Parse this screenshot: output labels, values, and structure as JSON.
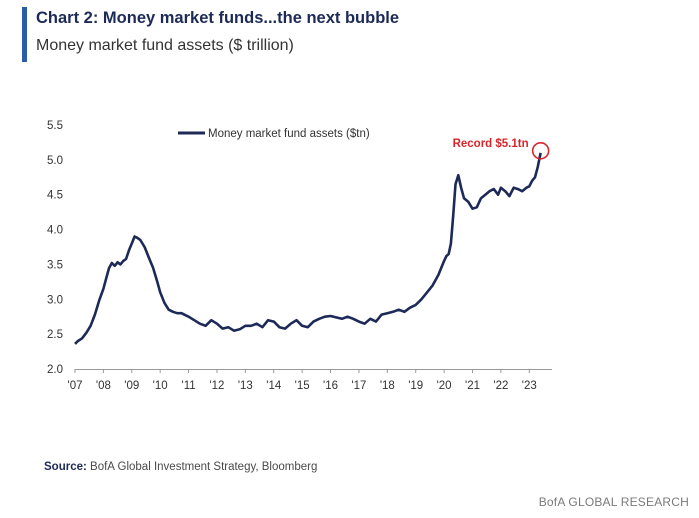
{
  "header": {
    "title": "Chart 2: Money market funds...the next bubble",
    "subtitle": "Money market fund assets ($ trillion)"
  },
  "footer": {
    "source_label": "Source:",
    "source_text": " BofA Global Investment Strategy, Bloomberg",
    "brand": "BofA GLOBAL RESEARCH"
  },
  "colors": {
    "accent": "#2a5caa",
    "series": "#1d2a57",
    "highlight": "#d7262b",
    "axis": "#999999"
  },
  "chart_data": {
    "type": "line",
    "title": "Money market fund assets ($ trillion)",
    "xlabel": "",
    "ylabel": "",
    "ylim": [
      2.0,
      5.5
    ],
    "xlim": [
      2007.0,
      2023.8
    ],
    "yticks": [
      2.0,
      2.5,
      3.0,
      3.5,
      4.0,
      4.5,
      5.0,
      5.5
    ],
    "ytick_labels": [
      "2.0",
      "2.5",
      "3.0",
      "3.5",
      "4.0",
      "4.5",
      "5.0",
      "5.5"
    ],
    "xticks": [
      2007,
      2008,
      2009,
      2010,
      2011,
      2012,
      2013,
      2014,
      2015,
      2016,
      2017,
      2018,
      2019,
      2020,
      2021,
      2022,
      2023
    ],
    "xtick_labels": [
      "'07",
      "'08",
      "'09",
      "'10",
      "'11",
      "'12",
      "'13",
      "'14",
      "'15",
      "'16",
      "'17",
      "'18",
      "'19",
      "'20",
      "'21",
      "'22",
      "'23"
    ],
    "grid": false,
    "legend_position": "top-center",
    "series": [
      {
        "name": "Money market fund assets ($tn)",
        "x": [
          2007.0,
          2007.1,
          2007.25,
          2007.4,
          2007.55,
          2007.7,
          2007.85,
          2008.0,
          2008.1,
          2008.2,
          2008.3,
          2008.4,
          2008.5,
          2008.6,
          2008.7,
          2008.8,
          2008.9,
          2009.0,
          2009.1,
          2009.2,
          2009.3,
          2009.45,
          2009.6,
          2009.75,
          2009.9,
          2010.0,
          2010.15,
          2010.3,
          2010.45,
          2010.6,
          2010.75,
          2010.9,
          2011.0,
          2011.2,
          2011.4,
          2011.6,
          2011.8,
          2012.0,
          2012.2,
          2012.4,
          2012.6,
          2012.8,
          2013.0,
          2013.2,
          2013.4,
          2013.6,
          2013.8,
          2014.0,
          2014.2,
          2014.4,
          2014.6,
          2014.8,
          2015.0,
          2015.2,
          2015.4,
          2015.6,
          2015.8,
          2016.0,
          2016.2,
          2016.4,
          2016.6,
          2016.8,
          2017.0,
          2017.2,
          2017.4,
          2017.6,
          2017.8,
          2018.0,
          2018.2,
          2018.4,
          2018.6,
          2018.8,
          2019.0,
          2019.2,
          2019.4,
          2019.6,
          2019.8,
          2020.0,
          2020.08,
          2020.16,
          2020.24,
          2020.32,
          2020.4,
          2020.5,
          2020.6,
          2020.7,
          2020.85,
          2021.0,
          2021.15,
          2021.3,
          2021.45,
          2021.6,
          2021.75,
          2021.9,
          2022.0,
          2022.15,
          2022.3,
          2022.45,
          2022.6,
          2022.75,
          2022.9,
          2023.0,
          2023.1,
          2023.2,
          2023.3,
          2023.4
        ],
        "y": [
          2.36,
          2.4,
          2.44,
          2.52,
          2.62,
          2.78,
          2.98,
          3.15,
          3.3,
          3.45,
          3.52,
          3.48,
          3.53,
          3.5,
          3.55,
          3.58,
          3.7,
          3.8,
          3.9,
          3.88,
          3.85,
          3.75,
          3.6,
          3.45,
          3.25,
          3.1,
          2.95,
          2.85,
          2.82,
          2.8,
          2.8,
          2.77,
          2.75,
          2.7,
          2.65,
          2.62,
          2.7,
          2.65,
          2.58,
          2.6,
          2.55,
          2.57,
          2.62,
          2.62,
          2.65,
          2.6,
          2.7,
          2.68,
          2.6,
          2.58,
          2.65,
          2.7,
          2.62,
          2.6,
          2.68,
          2.72,
          2.75,
          2.76,
          2.74,
          2.72,
          2.75,
          2.72,
          2.68,
          2.65,
          2.72,
          2.68,
          2.78,
          2.8,
          2.82,
          2.85,
          2.82,
          2.88,
          2.92,
          3.0,
          3.1,
          3.2,
          3.35,
          3.55,
          3.62,
          3.65,
          3.8,
          4.2,
          4.65,
          4.78,
          4.6,
          4.45,
          4.4,
          4.3,
          4.32,
          4.45,
          4.5,
          4.55,
          4.58,
          4.5,
          4.6,
          4.55,
          4.48,
          4.6,
          4.58,
          4.55,
          4.6,
          4.62,
          4.7,
          4.75,
          4.9,
          5.1
        ]
      }
    ],
    "annotations": [
      {
        "text": "Record $5.1tn",
        "x": 2023.4,
        "y": 5.13
      }
    ]
  }
}
